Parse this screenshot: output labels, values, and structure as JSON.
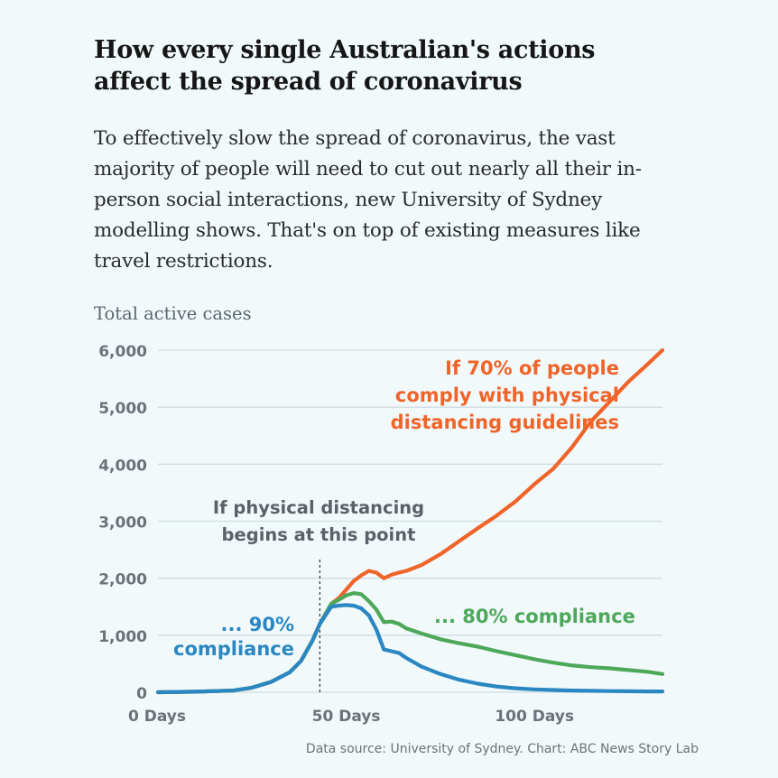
{
  "title": "How every single Australian's actions affect the spread of coronavirus",
  "subtitle": "To effectively slow the spread of coronavirus, the vast majority of people will need to cut out nearly all their in-person social interactions, new University of Sydney modelling shows. That's on top of existing measures like travel restrictions.",
  "source": "Data source: University of Sydney. Chart: ABC News Story Lab",
  "chart_data": {
    "type": "line",
    "ylabel": "Total active cases",
    "xlabel": "",
    "xlim": [
      0,
      134
    ],
    "ylim": [
      0,
      6000
    ],
    "grid": true,
    "x_ticks": [
      {
        "value": 0,
        "label": "0 Days"
      },
      {
        "value": 50,
        "label": "50 Days"
      },
      {
        "value": 100,
        "label": "100 Days"
      }
    ],
    "y_ticks": [
      {
        "value": 0,
        "label": "0"
      },
      {
        "value": 1000,
        "label": "1,000"
      },
      {
        "value": 2000,
        "label": "2,000"
      },
      {
        "value": 3000,
        "label": "3,000"
      },
      {
        "value": 4000,
        "label": "4,000"
      },
      {
        "value": 5000,
        "label": "5,000"
      },
      {
        "value": 6000,
        "label": "6,000"
      }
    ],
    "marker": {
      "x": 43,
      "label_lines": [
        "If physical distancing",
        "begins at this point"
      ]
    },
    "series": [
      {
        "key": "seventy",
        "color": "#f0642a",
        "label_lines": [
          "If 70% of people",
          "comply with physical",
          "distancing guidelines"
        ],
        "x": [
          0,
          10,
          20,
          25,
          30,
          35,
          38,
          41,
          43,
          46,
          48,
          50,
          52,
          54,
          56,
          58,
          60,
          62,
          64,
          66,
          70,
          75,
          80,
          85,
          90,
          95,
          100,
          105,
          110,
          115,
          120,
          125,
          130,
          134
        ],
        "y": [
          0,
          10,
          30,
          80,
          180,
          350,
          550,
          900,
          1200,
          1550,
          1650,
          1800,
          1950,
          2050,
          2130,
          2100,
          2000,
          2060,
          2100,
          2130,
          2230,
          2420,
          2650,
          2880,
          3100,
          3350,
          3650,
          3920,
          4300,
          4750,
          5100,
          5450,
          5750,
          6000
        ]
      },
      {
        "key": "eighty",
        "color": "#4ea85a",
        "label_lines": [
          "... 80% compliance"
        ],
        "x": [
          0,
          10,
          20,
          25,
          30,
          35,
          38,
          41,
          43,
          46,
          48,
          50,
          52,
          54,
          56,
          58,
          60,
          62,
          64,
          66,
          70,
          75,
          80,
          85,
          90,
          95,
          100,
          105,
          110,
          115,
          120,
          125,
          130,
          134
        ],
        "y": [
          0,
          10,
          30,
          80,
          180,
          350,
          550,
          900,
          1200,
          1550,
          1620,
          1700,
          1740,
          1720,
          1600,
          1450,
          1230,
          1240,
          1200,
          1120,
          1030,
          930,
          860,
          800,
          720,
          650,
          580,
          520,
          470,
          440,
          420,
          390,
          360,
          320
        ]
      },
      {
        "key": "ninety",
        "color": "#2a87c2",
        "label_lines": [
          "... 90%",
          "compliance"
        ],
        "x": [
          0,
          10,
          20,
          25,
          30,
          35,
          38,
          41,
          43,
          46,
          48,
          50,
          52,
          54,
          56,
          58,
          60,
          62,
          64,
          66,
          70,
          75,
          80,
          85,
          90,
          95,
          100,
          105,
          110,
          115,
          120,
          125,
          130,
          134
        ],
        "y": [
          0,
          10,
          30,
          80,
          180,
          350,
          550,
          900,
          1200,
          1500,
          1520,
          1530,
          1520,
          1470,
          1350,
          1100,
          750,
          720,
          690,
          600,
          450,
          320,
          220,
          150,
          100,
          70,
          50,
          40,
          30,
          25,
          20,
          18,
          15,
          15
        ]
      }
    ]
  }
}
